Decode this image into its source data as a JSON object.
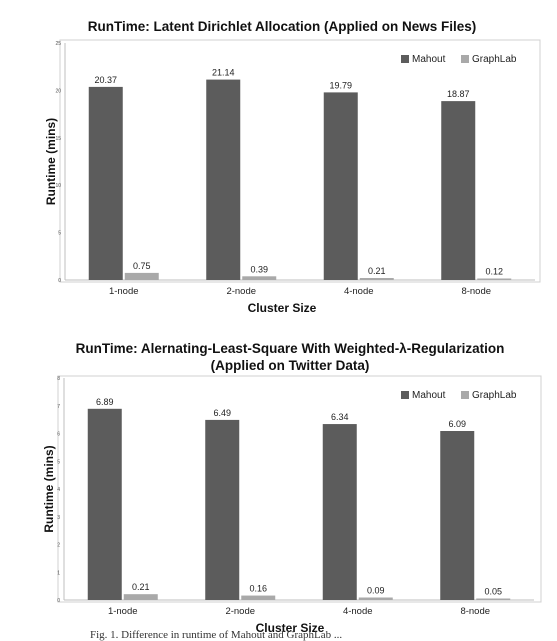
{
  "chart_data": [
    {
      "type": "bar",
      "title": "RunTime: Latent Dirichlet Allocation (Applied on News Files)",
      "title_line2": "",
      "xlabel": "Cluster Size",
      "ylabel": "Runtime (mins)",
      "categories": [
        "1-node",
        "2-node",
        "4-node",
        "8-node"
      ],
      "series": [
        {
          "name": "Mahout",
          "values": [
            20.37,
            21.14,
            19.79,
            18.87
          ],
          "labels": [
            "20.37",
            "21.14",
            "19.79",
            "18.87"
          ],
          "color": "#5c5c5c"
        },
        {
          "name": "GraphLab",
          "values": [
            0.75,
            0.39,
            0.21,
            0.12
          ],
          "labels": [
            "0.75",
            "0.39",
            "0.21",
            "0.12"
          ],
          "color": "#a9a9a9"
        }
      ],
      "ylim": [
        0,
        25
      ],
      "yticks": [
        0,
        5,
        10,
        15,
        20,
        25
      ],
      "ytick_labels": [
        "0",
        "5",
        "10",
        "15",
        "20",
        "25"
      ],
      "grid": false,
      "legend": "top-right"
    },
    {
      "type": "bar",
      "title": "RunTime: Alernating-Least-Square With Weighted-λ-Regularization",
      "title_line2": "(Applied on Twitter Data)",
      "xlabel": "Cluster Size",
      "ylabel": "Runtime (mins)",
      "categories": [
        "1-node",
        "2-node",
        "4-node",
        "8-node"
      ],
      "series": [
        {
          "name": "Mahout",
          "values": [
            6.89,
            6.49,
            6.34,
            6.09
          ],
          "labels": [
            "6.89",
            "6.49",
            "6.34",
            "6.09"
          ],
          "color": "#5c5c5c"
        },
        {
          "name": "GraphLab",
          "values": [
            0.21,
            0.16,
            0.09,
            0.05
          ],
          "labels": [
            "0.21",
            "0.16",
            "0.09",
            "0.05"
          ],
          "color": "#a9a9a9"
        }
      ],
      "ylim": [
        0,
        8
      ],
      "yticks": [
        0,
        1,
        2,
        3,
        4,
        5,
        6,
        7,
        8
      ],
      "ytick_labels": [
        "0",
        "1",
        "2",
        "3",
        "4",
        "5",
        "6",
        "7",
        "8"
      ],
      "grid": false,
      "legend": "top-right"
    }
  ],
  "caption": "Fig. 1. Difference in runtime of Mahout and GraphLab ..."
}
